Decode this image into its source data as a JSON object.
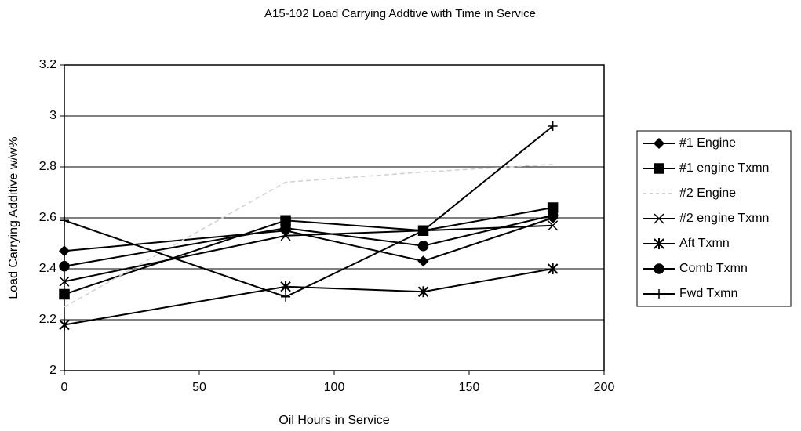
{
  "chart_data": {
    "type": "line",
    "title": "A15-102 Load Carrying Addtive with Time in Service",
    "xlabel": "Oil Hours in Service",
    "ylabel": "Load Carrying Additive w/w%",
    "x": [
      0,
      82,
      133,
      181
    ],
    "xlim": [
      0,
      200
    ],
    "xticks": [
      0,
      50,
      100,
      150,
      200
    ],
    "ylim": [
      2,
      3.2
    ],
    "yticks": [
      2,
      2.2,
      2.4,
      2.6,
      2.8,
      3,
      3.2
    ],
    "grid": true,
    "legend": "right",
    "series": [
      {
        "name": "#1 Engine",
        "color": "#000000",
        "marker": "diamond",
        "values": [
          2.47,
          2.55,
          2.43,
          2.6
        ]
      },
      {
        "name": "#1 engine Txmn",
        "color": "#000000",
        "marker": "square",
        "values": [
          2.3,
          2.59,
          2.55,
          2.64
        ]
      },
      {
        "name": "#2 Engine",
        "color": "#d0d0d0",
        "marker": "none",
        "values": [
          2.25,
          2.74,
          2.78,
          2.81
        ]
      },
      {
        "name": "#2 engine Txmn",
        "color": "#000000",
        "marker": "x",
        "values": [
          2.35,
          2.53,
          2.55,
          2.57
        ]
      },
      {
        "name": "Aft Txmn",
        "color": "#000000",
        "marker": "star",
        "values": [
          2.18,
          2.33,
          2.31,
          2.4
        ]
      },
      {
        "name": "Comb Txmn",
        "color": "#000000",
        "marker": "circle",
        "values": [
          2.41,
          2.56,
          2.49,
          2.61
        ]
      },
      {
        "name": "Fwd Txmn",
        "color": "#000000",
        "marker": "plus",
        "values": [
          2.59,
          2.29,
          2.55,
          2.96
        ]
      }
    ]
  }
}
